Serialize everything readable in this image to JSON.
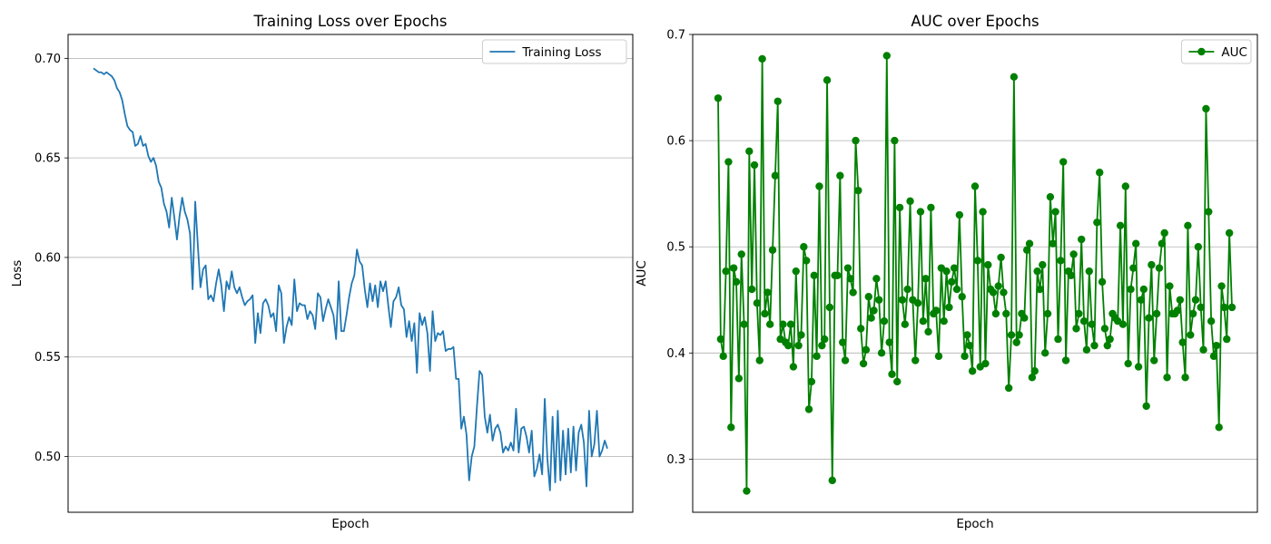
{
  "chart_data": [
    {
      "type": "line",
      "title": "Training Loss over Epochs",
      "xlabel": "Epoch",
      "ylabel": "Loss",
      "ylim": [
        0.472,
        0.712
      ],
      "yticks": [
        0.5,
        0.55,
        0.6,
        0.65,
        0.7
      ],
      "ytick_format": 2,
      "grid": "y",
      "legend": "top-right",
      "series": [
        {
          "name": "Training Loss",
          "color": "#1f77b4",
          "marker": "none",
          "values": [
            0.695,
            0.694,
            0.693,
            0.693,
            0.692,
            0.693,
            0.692,
            0.691,
            0.689,
            0.685,
            0.683,
            0.679,
            0.672,
            0.666,
            0.664,
            0.663,
            0.656,
            0.657,
            0.661,
            0.656,
            0.657,
            0.651,
            0.648,
            0.65,
            0.646,
            0.638,
            0.635,
            0.627,
            0.623,
            0.615,
            0.63,
            0.62,
            0.609,
            0.621,
            0.63,
            0.623,
            0.619,
            0.612,
            0.584,
            0.628,
            0.606,
            0.585,
            0.594,
            0.596,
            0.579,
            0.581,
            0.578,
            0.587,
            0.594,
            0.586,
            0.573,
            0.588,
            0.584,
            0.593,
            0.585,
            0.582,
            0.585,
            0.58,
            0.576,
            0.578,
            0.579,
            0.581,
            0.557,
            0.572,
            0.562,
            0.577,
            0.579,
            0.576,
            0.57,
            0.572,
            0.563,
            0.586,
            0.582,
            0.557,
            0.565,
            0.57,
            0.566,
            0.589,
            0.573,
            0.577,
            0.576,
            0.576,
            0.569,
            0.573,
            0.571,
            0.564,
            0.582,
            0.58,
            0.568,
            0.574,
            0.579,
            0.575,
            0.571,
            0.559,
            0.588,
            0.563,
            0.563,
            0.571,
            0.58,
            0.587,
            0.591,
            0.604,
            0.598,
            0.596,
            0.584,
            0.575,
            0.587,
            0.578,
            0.586,
            0.575,
            0.588,
            0.583,
            0.588,
            0.576,
            0.565,
            0.578,
            0.58,
            0.585,
            0.576,
            0.574,
            0.56,
            0.568,
            0.558,
            0.567,
            0.542,
            0.572,
            0.566,
            0.57,
            0.562,
            0.543,
            0.573,
            0.558,
            0.562,
            0.561,
            0.563,
            0.553,
            0.554,
            0.554,
            0.555,
            0.539,
            0.539,
            0.514,
            0.52,
            0.511,
            0.488,
            0.5,
            0.505,
            0.525,
            0.543,
            0.541,
            0.52,
            0.512,
            0.521,
            0.508,
            0.514,
            0.516,
            0.512,
            0.502,
            0.505,
            0.503,
            0.507,
            0.503,
            0.524,
            0.502,
            0.514,
            0.515,
            0.51,
            0.502,
            0.513,
            0.49,
            0.494,
            0.501,
            0.491,
            0.529,
            0.499,
            0.483,
            0.52,
            0.487,
            0.523,
            0.488,
            0.513,
            0.491,
            0.514,
            0.492,
            0.515,
            0.493,
            0.512,
            0.516,
            0.507,
            0.485,
            0.523,
            0.5,
            0.506,
            0.523,
            0.5,
            0.503,
            0.508,
            0.504
          ]
        }
      ]
    },
    {
      "type": "line",
      "title": "AUC over Epochs",
      "xlabel": "Epoch",
      "ylabel": "AUC",
      "ylim": [
        0.25,
        0.7
      ],
      "yticks": [
        0.3,
        0.4,
        0.5,
        0.6,
        0.7
      ],
      "ytick_format": 1,
      "grid": "y",
      "legend": "top-right",
      "series": [
        {
          "name": "AUC",
          "color": "#008000",
          "marker": "circle",
          "values": [
            0.64,
            0.413,
            0.397,
            0.477,
            0.58,
            0.33,
            0.48,
            0.467,
            0.376,
            0.493,
            0.427,
            0.27,
            0.59,
            0.46,
            0.577,
            0.447,
            0.393,
            0.677,
            0.437,
            0.457,
            0.427,
            0.497,
            0.567,
            0.637,
            0.413,
            0.427,
            0.41,
            0.407,
            0.427,
            0.387,
            0.477,
            0.407,
            0.417,
            0.5,
            0.487,
            0.347,
            0.373,
            0.473,
            0.397,
            0.557,
            0.407,
            0.413,
            0.657,
            0.443,
            0.28,
            0.473,
            0.473,
            0.567,
            0.41,
            0.393,
            0.48,
            0.47,
            0.457,
            0.6,
            0.553,
            0.423,
            0.39,
            0.403,
            0.453,
            0.433,
            0.44,
            0.47,
            0.45,
            0.4,
            0.43,
            0.68,
            0.41,
            0.38,
            0.6,
            0.373,
            0.537,
            0.45,
            0.427,
            0.46,
            0.543,
            0.45,
            0.393,
            0.447,
            0.533,
            0.43,
            0.47,
            0.42,
            0.537,
            0.437,
            0.44,
            0.397,
            0.48,
            0.43,
            0.477,
            0.443,
            0.467,
            0.48,
            0.46,
            0.53,
            0.453,
            0.397,
            0.417,
            0.407,
            0.383,
            0.557,
            0.487,
            0.387,
            0.533,
            0.39,
            0.483,
            0.46,
            0.457,
            0.437,
            0.463,
            0.49,
            0.457,
            0.437,
            0.367,
            0.417,
            0.66,
            0.41,
            0.417,
            0.437,
            0.433,
            0.497,
            0.503,
            0.377,
            0.383,
            0.477,
            0.46,
            0.483,
            0.4,
            0.437,
            0.547,
            0.503,
            0.533,
            0.413,
            0.487,
            0.58,
            0.393,
            0.477,
            0.473,
            0.493,
            0.423,
            0.437,
            0.507,
            0.43,
            0.403,
            0.477,
            0.427,
            0.407,
            0.523,
            0.57,
            0.467,
            0.423,
            0.407,
            0.413,
            0.437,
            0.433,
            0.43,
            0.52,
            0.427,
            0.557,
            0.39,
            0.46,
            0.48,
            0.503,
            0.387,
            0.45,
            0.46,
            0.35,
            0.433,
            0.483,
            0.393,
            0.437,
            0.48,
            0.503,
            0.513,
            0.377,
            0.463,
            0.437,
            0.437,
            0.44,
            0.45,
            0.41,
            0.377,
            0.52,
            0.417,
            0.437,
            0.45,
            0.5,
            0.443,
            0.403,
            0.63,
            0.533,
            0.43,
            0.397,
            0.407,
            0.33,
            0.463,
            0.443,
            0.413,
            0.513,
            0.443
          ]
        }
      ]
    }
  ]
}
